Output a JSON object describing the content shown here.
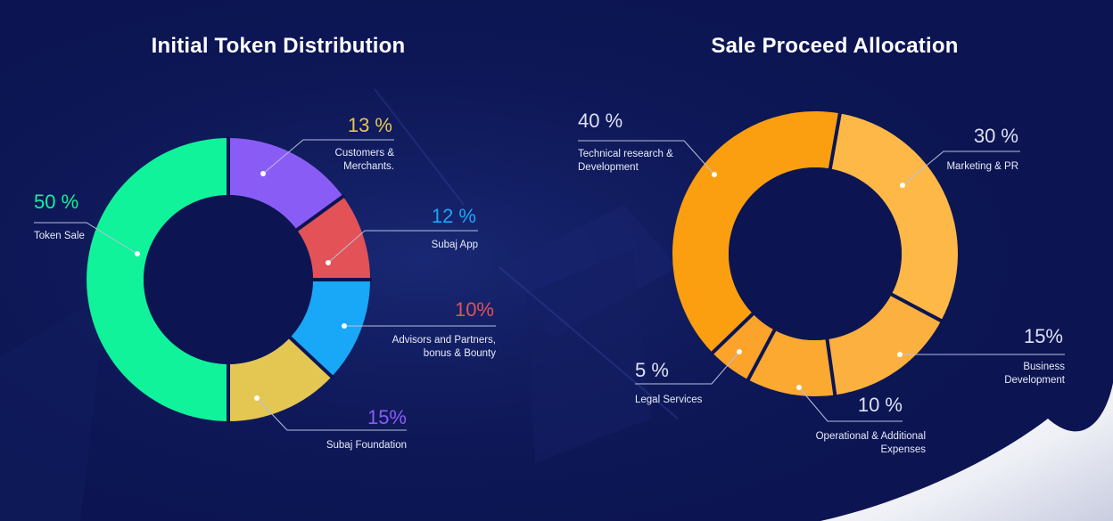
{
  "colors": {
    "background": "#0c1552",
    "ring_gap": "#0c1552",
    "leader": "#b8bfdc",
    "label": "#e8ebf8"
  },
  "chart_data": [
    {
      "type": "pie",
      "title": "Initial Token Distribution",
      "series": [
        {
          "name": "Token Sale",
          "value": 50,
          "pct_label": "50 %",
          "lines": [
            "Token Sale"
          ],
          "color": "#10f39a",
          "pct_color": "#10f39a"
        },
        {
          "name": "Subaj Foundation",
          "value": 15,
          "pct_label": "15%",
          "lines": [
            "Subaj Foundation"
          ],
          "color": "#8a5cf6",
          "pct_color": "#8a5cf6"
        },
        {
          "name": "Advisors and Partners, bonus & Bounty",
          "value": 10,
          "pct_label": "10%",
          "lines": [
            "Advisors and Partners,",
            "bonus & Bounty"
          ],
          "color": "#e25256",
          "pct_color": "#e25256"
        },
        {
          "name": "Subaj App",
          "value": 12,
          "pct_label": "12 %",
          "lines": [
            "Subaj App"
          ],
          "color": "#19a7f7",
          "pct_color": "#19a7f7"
        },
        {
          "name": "Customers & Merchants.",
          "value": 13,
          "pct_label": "13 %",
          "lines": [
            "Customers &",
            "Merchants."
          ],
          "color": "#e4c653",
          "pct_color": "#e4c653"
        }
      ]
    },
    {
      "type": "pie",
      "title": "Sale Proceed Allocation",
      "series": [
        {
          "name": "Marketing & PR",
          "value": 30,
          "pct_label": "30 %",
          "lines": [
            "Marketing & PR"
          ],
          "color": "#fdb847",
          "pct_color": "#dde1f2"
        },
        {
          "name": "Business Development",
          "value": 15,
          "pct_label": "15%",
          "lines": [
            "Business",
            "Development"
          ],
          "color": "#fbb03f",
          "pct_color": "#dde1f2"
        },
        {
          "name": "Operational & Additional Expenses",
          "value": 10,
          "pct_label": "10 %",
          "lines": [
            "Operational & Additional",
            "Expenses"
          ],
          "color": "#fba930",
          "pct_color": "#dde1f2"
        },
        {
          "name": "Legal Services",
          "value": 5,
          "pct_label": "5 %",
          "lines": [
            "Legal Services"
          ],
          "color": "#fba32b",
          "pct_color": "#dde1f2"
        },
        {
          "name": "Technical research & Development",
          "value": 40,
          "pct_label": "40 %",
          "lines": [
            "Technical research &",
            "Development"
          ],
          "color": "#fb9f10",
          "pct_color": "#dde1f2"
        }
      ]
    }
  ]
}
